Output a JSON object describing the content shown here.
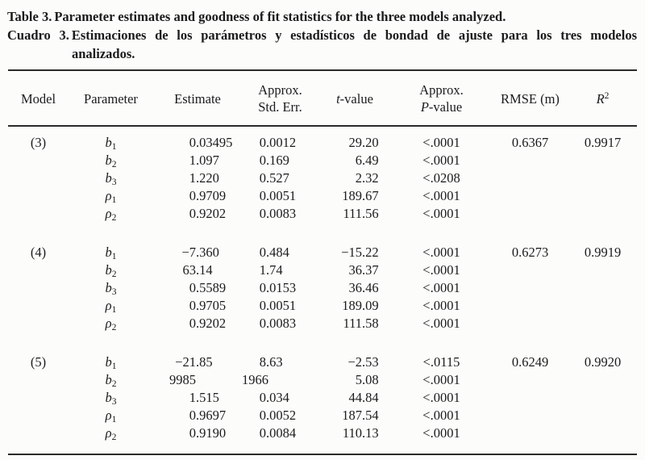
{
  "style": {
    "ink_color": "#1b1b1b",
    "background": "#fcfcfb"
  },
  "caption": {
    "en_label": "Table 3.",
    "en_text": "Parameter estimates and goodness of fit statistics for the three models analyzed.",
    "es_label": "Cuadro 3.",
    "es_text": "Estimaciones de los parámetros y estadísticos de bondad de ajuste para los tres modelos analizados.",
    "es_lines": [
      "Estimaciones de los parámetros y estadísticos de bondad de ajuste para los tres modelos",
      "analizados."
    ]
  },
  "table": {
    "headers": {
      "model": "Model",
      "parameter": "Parameter",
      "estimate": "Estimate",
      "std_err_line1": "Approx.",
      "std_err_line2": "Std. Err.",
      "t_italic": "t",
      "t_rest": "-value",
      "p_line1": "Approx.",
      "p_italic": "P",
      "p_rest": "-value",
      "rmse": "RMSE (m)",
      "r2_italic": "R",
      "r2_sup": "2"
    },
    "groups": [
      {
        "model": "(3)",
        "rmse": "0.6367",
        "r2": "0.9917",
        "rows": [
          {
            "param": {
              "sym": "b",
              "sub": "1"
            },
            "est": "0.03495",
            "se": "0.0012",
            "t": "29.20",
            "p": "<.0001"
          },
          {
            "param": {
              "sym": "b",
              "sub": "2"
            },
            "est": "1.097",
            "se": "0.169",
            "t": "6.49",
            "p": "<.0001"
          },
          {
            "param": {
              "sym": "b",
              "sub": "3"
            },
            "est": "1.220",
            "se": "0.527",
            "t": "2.32",
            "p": "<.0208"
          },
          {
            "param": {
              "sym": "ρ",
              "sub": "1"
            },
            "est": "0.9709",
            "se": "0.0051",
            "t": "189.67",
            "p": "<.0001"
          },
          {
            "param": {
              "sym": "ρ",
              "sub": "2"
            },
            "est": "0.9202",
            "se": "0.0083",
            "t": "111.56",
            "p": "<.0001"
          }
        ]
      },
      {
        "model": "(4)",
        "rmse": "0.6273",
        "r2": "0.9919",
        "rows": [
          {
            "param": {
              "sym": "b",
              "sub": "1"
            },
            "est": "−7.360",
            "se": "0.484",
            "t": "−15.22",
            "p": "<.0001"
          },
          {
            "param": {
              "sym": "b",
              "sub": "2"
            },
            "est": "63.14",
            "se": "1.74",
            "t": "36.37",
            "p": "<.0001"
          },
          {
            "param": {
              "sym": "b",
              "sub": "3"
            },
            "est": "0.5589",
            "se": "0.0153",
            "t": "36.46",
            "p": "<.0001"
          },
          {
            "param": {
              "sym": "ρ",
              "sub": "1"
            },
            "est": "0.9705",
            "se": "0.0051",
            "t": "189.09",
            "p": "<.0001"
          },
          {
            "param": {
              "sym": "ρ",
              "sub": "2"
            },
            "est": "0.9202",
            "se": "0.0083",
            "t": "111.58",
            "p": "<.0001"
          }
        ]
      },
      {
        "model": "(5)",
        "rmse": "0.6249",
        "r2": "0.9920",
        "rows": [
          {
            "param": {
              "sym": "b",
              "sub": "1"
            },
            "est": "−21.85",
            "se": "8.63",
            "t": "−2.53",
            "p": "<.0115"
          },
          {
            "param": {
              "sym": "b",
              "sub": "2"
            },
            "est": "9985",
            "se": "1966",
            "t": "5.08",
            "p": "<.0001"
          },
          {
            "param": {
              "sym": "b",
              "sub": "3"
            },
            "est": "1.515",
            "se": "0.034",
            "t": "44.84",
            "p": "<.0001"
          },
          {
            "param": {
              "sym": "ρ",
              "sub": "1"
            },
            "est": "0.9697",
            "se": "0.0052",
            "t": "187.54",
            "p": "<.0001"
          },
          {
            "param": {
              "sym": "ρ",
              "sub": "2"
            },
            "est": "0.9190",
            "se": "0.0084",
            "t": "110.13",
            "p": "<.0001"
          }
        ]
      }
    ]
  }
}
